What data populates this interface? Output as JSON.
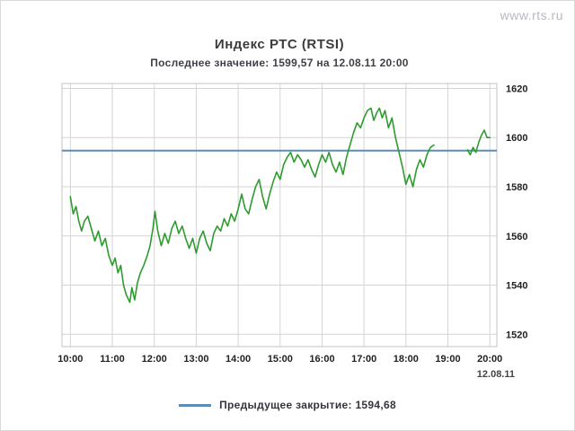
{
  "watermark": "www.rts.ru",
  "chart_data": {
    "type": "line",
    "title": "Индекс РТС (RTSI)",
    "subtitle": "Последнее значение: 1599,57 на 12.08.11 20:00",
    "last_value": "1599,57",
    "last_time": "12.08.11 20:00",
    "date_label": "12.08.11",
    "x_ticks": [
      "10:00",
      "11:00",
      "12:00",
      "13:00",
      "14:00",
      "15:00",
      "16:00",
      "17:00",
      "18:00",
      "19:00",
      "20:00"
    ],
    "x_tick_minutes": [
      0,
      60,
      120,
      180,
      240,
      300,
      360,
      420,
      480,
      540,
      600
    ],
    "x_range_minutes": [
      -12,
      610
    ],
    "y_ticks": [
      1520,
      1540,
      1560,
      1580,
      1600,
      1620
    ],
    "y_range": [
      1515,
      1622
    ],
    "grid": true,
    "legend_position": "bottom",
    "colors": {
      "grid": "#d4d4d4",
      "border": "#c3c3c3"
    },
    "series": [
      {
        "name": "RTSI",
        "color": "#2e9b2e",
        "segments": [
          [
            [
              0,
              1576
            ],
            [
              4,
              1569
            ],
            [
              8,
              1572
            ],
            [
              12,
              1566
            ],
            [
              16,
              1562
            ],
            [
              20,
              1566
            ],
            [
              25,
              1568
            ],
            [
              30,
              1563
            ],
            [
              35,
              1558
            ],
            [
              40,
              1562
            ],
            [
              45,
              1556
            ],
            [
              50,
              1559
            ],
            [
              55,
              1552
            ],
            [
              60,
              1548
            ],
            [
              64,
              1551
            ],
            [
              68,
              1545
            ],
            [
              72,
              1548
            ],
            [
              76,
              1540
            ],
            [
              80,
              1536
            ],
            [
              85,
              1533
            ],
            [
              88,
              1539
            ],
            [
              92,
              1534
            ],
            [
              96,
              1541
            ],
            [
              100,
              1545
            ],
            [
              105,
              1548
            ],
            [
              110,
              1552
            ],
            [
              114,
              1556
            ],
            [
              118,
              1563
            ],
            [
              121,
              1570
            ],
            [
              125,
              1562
            ],
            [
              130,
              1556
            ],
            [
              135,
              1561
            ],
            [
              140,
              1557
            ],
            [
              145,
              1563
            ],
            [
              150,
              1566
            ],
            [
              155,
              1561
            ],
            [
              160,
              1564
            ],
            [
              165,
              1559
            ],
            [
              170,
              1555
            ],
            [
              175,
              1559
            ],
            [
              180,
              1553
            ],
            [
              185,
              1559
            ],
            [
              190,
              1562
            ],
            [
              195,
              1557
            ],
            [
              200,
              1554
            ],
            [
              205,
              1561
            ],
            [
              210,
              1564
            ],
            [
              215,
              1562
            ],
            [
              220,
              1567
            ],
            [
              225,
              1564
            ],
            [
              230,
              1569
            ],
            [
              235,
              1566
            ],
            [
              240,
              1571
            ],
            [
              245,
              1577
            ],
            [
              250,
              1571
            ],
            [
              255,
              1569
            ],
            [
              260,
              1575
            ],
            [
              265,
              1580
            ],
            [
              270,
              1583
            ],
            [
              275,
              1576
            ],
            [
              280,
              1571
            ],
            [
              285,
              1577
            ],
            [
              290,
              1582
            ],
            [
              295,
              1586
            ],
            [
              300,
              1583
            ],
            [
              305,
              1589
            ],
            [
              310,
              1592
            ],
            [
              315,
              1594
            ],
            [
              320,
              1590
            ],
            [
              325,
              1593
            ],
            [
              330,
              1591
            ],
            [
              335,
              1588
            ],
            [
              340,
              1591
            ],
            [
              345,
              1587
            ],
            [
              350,
              1584
            ],
            [
              355,
              1589
            ],
            [
              360,
              1593
            ],
            [
              365,
              1590
            ],
            [
              370,
              1594
            ],
            [
              375,
              1589
            ],
            [
              380,
              1586
            ],
            [
              385,
              1590
            ],
            [
              390,
              1585
            ],
            [
              395,
              1592
            ],
            [
              400,
              1597
            ],
            [
              405,
              1602
            ],
            [
              410,
              1606
            ],
            [
              415,
              1604
            ],
            [
              420,
              1608
            ],
            [
              425,
              1611
            ],
            [
              430,
              1612
            ],
            [
              434,
              1607
            ],
            [
              438,
              1610
            ],
            [
              442,
              1612
            ],
            [
              446,
              1608
            ],
            [
              450,
              1611
            ],
            [
              455,
              1604
            ],
            [
              460,
              1608
            ],
            [
              465,
              1600
            ],
            [
              470,
              1594
            ],
            [
              475,
              1588
            ],
            [
              480,
              1581
            ],
            [
              485,
              1585
            ],
            [
              490,
              1580
            ],
            [
              495,
              1587
            ],
            [
              500,
              1591
            ],
            [
              505,
              1588
            ],
            [
              510,
              1593
            ],
            [
              515,
              1596
            ],
            [
              520,
              1597
            ]
          ],
          [
            [
              568,
              1595
            ],
            [
              572,
              1593
            ],
            [
              576,
              1596
            ],
            [
              580,
              1594
            ],
            [
              584,
              1598
            ],
            [
              588,
              1601
            ],
            [
              592,
              1603
            ],
            [
              596,
              1600
            ],
            [
              600,
              1600
            ]
          ]
        ]
      }
    ],
    "reference_line": {
      "label": "Предыдущее закрытие: 1594,68",
      "value": 1594.68,
      "color": "#5b8db8"
    }
  }
}
